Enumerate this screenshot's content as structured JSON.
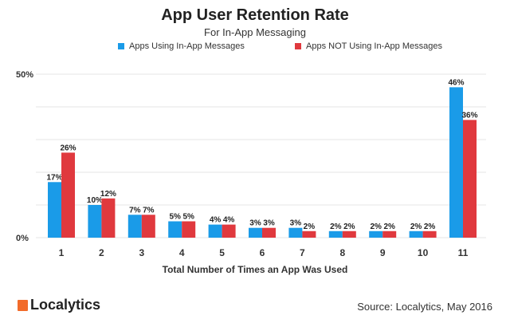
{
  "chart_data": {
    "type": "bar",
    "title": "App User Retention Rate",
    "subtitle": "For In-App Messaging",
    "xlabel": "Total Number of Times an App Was Used",
    "ylabel": "",
    "ylim": [
      0,
      50
    ],
    "yticks": [
      "0%",
      "50%"
    ],
    "grid": true,
    "legend_placement": "top",
    "categories": [
      "1",
      "2",
      "3",
      "4",
      "5",
      "6",
      "7",
      "8",
      "9",
      "10",
      "11"
    ],
    "series": [
      {
        "name": "Apps Using In-App Messages",
        "color": "#1a9be8",
        "values": [
          17,
          10,
          7,
          5,
          4,
          3,
          3,
          2,
          2,
          2,
          46
        ]
      },
      {
        "name": "Apps NOT Using In-App Messages",
        "color": "#e0393e",
        "values": [
          26,
          12,
          7,
          5,
          4,
          3,
          2,
          2,
          2,
          2,
          36
        ]
      }
    ]
  },
  "footer": {
    "brand": "Localytics",
    "source": "Source: Localytics, May 2016"
  }
}
